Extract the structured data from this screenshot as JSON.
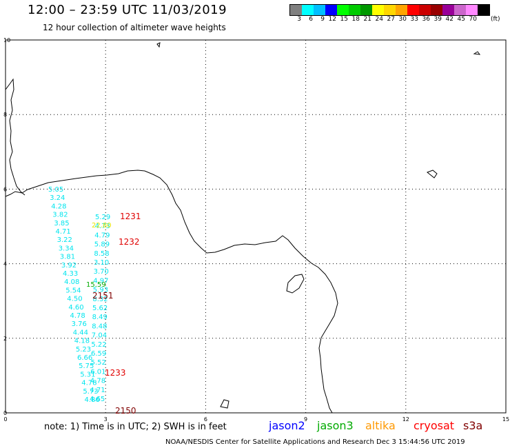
{
  "title": "12:00 – 23:59 UTC 11/03/2019",
  "subtitle": "12 hour collection of altimeter wave heights",
  "legend": {
    "colors": [
      "#808080",
      "#00ffff",
      "#00bfff",
      "#0000ff",
      "#00ff00",
      "#00cc00",
      "#009900",
      "#ffff00",
      "#ffd700",
      "#ffa500",
      "#ff0000",
      "#cc0000",
      "#990000",
      "#990099",
      "#cc66cc",
      "#ff88ff",
      "#000000"
    ],
    "labels": [
      "3",
      "6",
      "9",
      "12",
      "15",
      "18",
      "21",
      "24",
      "27",
      "30",
      "33",
      "36",
      "39",
      "42",
      "45",
      "70"
    ],
    "unit": "(ft)"
  },
  "axes": {
    "x_ticks": [
      "0",
      "3",
      "6",
      "9",
      "12",
      "15"
    ],
    "y_ticks": [
      "0",
      "2",
      "4",
      "6",
      "8",
      "10"
    ]
  },
  "swh_values": {
    "color": "#00e5ee",
    "track1": [
      "5.05",
      "3.24",
      "4.28",
      "3.82",
      "3.85",
      "4.71",
      "3.22",
      "3.34",
      "3.81",
      "3.92",
      "4.33",
      "4.08",
      "5.54",
      "4.50",
      "4.60",
      "4.78",
      "3.76",
      "4.44",
      "4.18",
      "5.23",
      "6.66",
      "5.75",
      "5.31",
      "4.78",
      "5.73",
      "4.86"
    ],
    "track2": [
      "5.29",
      "4.73",
      "4.79",
      "5.89",
      "8.58",
      "3.10",
      "3.70",
      "4.97",
      "5.93",
      "8.32",
      "5.62",
      "8.49",
      "8.48",
      "7.04",
      "5.22",
      "6.59",
      "5.52",
      "6.01",
      "4.78",
      "4.71",
      "4.65"
    ],
    "highlight_yellow": "22.80",
    "highlight_green": "15.59"
  },
  "time_labels": [
    {
      "text": "1231",
      "color": "#e00000"
    },
    {
      "text": "1232",
      "color": "#e00000"
    },
    {
      "text": "2151",
      "color": "#800000"
    },
    {
      "text": "1233",
      "color": "#e00000"
    },
    {
      "text": "2150",
      "color": "#800000"
    }
  ],
  "note": "note: 1) Time is in UTC; 2) SWH is in feet",
  "satellites": [
    {
      "name": "jason2",
      "color": "#0000ff"
    },
    {
      "name": "jason3",
      "color": "#00aa00"
    },
    {
      "name": "altika",
      "color": "#ff9900"
    },
    {
      "name": "cryosat",
      "color": "#ff0000"
    },
    {
      "name": "s3a",
      "color": "#800000"
    }
  ],
  "credit": "NOAA/NESDIS Center for Satellite Applications and Research   Dec  3 15:44:56 UTC 2019"
}
